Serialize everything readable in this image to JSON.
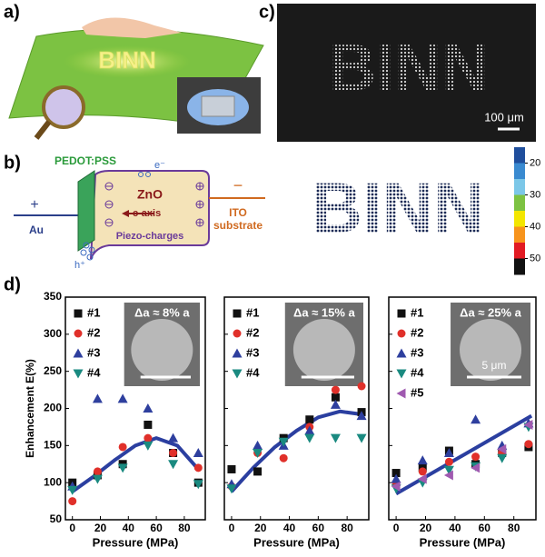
{
  "panel_labels": {
    "a": "a)",
    "b": "b)",
    "c": "c)",
    "d": "d)"
  },
  "panel_a": {
    "sheet_text": "BINN"
  },
  "panel_b": {
    "pedot": "PEDOT:PSS",
    "electron": "e⁻",
    "zno": "ZnO",
    "c_axis": "c-axis",
    "piezo": "Piezo-charges",
    "ito_1": "ITO",
    "ito_2": "substrate",
    "au": "Au",
    "plus": "+",
    "minus": "−",
    "hole": "h⁺"
  },
  "panel_c": {
    "top_image_text": "BINN",
    "bottom_image_text": "BINN",
    "scale_bar": "100 μm",
    "colorbar": {
      "lim": [
        15,
        55
      ],
      "ticks": [
        20,
        30,
        40,
        50
      ],
      "colors": [
        "#1f4e9c",
        "#3a8ad0",
        "#7cc7e8",
        "#7dc242",
        "#f3e600",
        "#f7941d",
        "#e21b23",
        "#111111"
      ]
    }
  },
  "chart_data": [
    {
      "type": "scatter",
      "inset_label": "Δa ≈ 8% a",
      "ylabel": "Enhancement E(%)",
      "xlabel": "Pressure (MPa)",
      "xlim": [
        -5,
        95
      ],
      "xticks": [
        0,
        20,
        40,
        60,
        80
      ],
      "ylim": [
        50,
        350
      ],
      "yticks": [
        50,
        100,
        150,
        200,
        250,
        300,
        350
      ],
      "ytick_labels": true,
      "x": [
        0,
        18,
        36,
        54,
        72,
        90
      ],
      "series": [
        {
          "name": "#1",
          "color": "#111111",
          "marker": "square",
          "values": [
            100,
            110,
            125,
            178,
            140,
            100
          ]
        },
        {
          "name": "#2",
          "color": "#e0302a",
          "marker": "circle",
          "values": [
            75,
            115,
            148,
            160,
            140,
            120
          ]
        },
        {
          "name": "#3",
          "color": "#2e3f9e",
          "marker": "triangle-up",
          "values": [
            95,
            213,
            213,
            200,
            160,
            140
          ]
        },
        {
          "name": "#4",
          "color": "#1a8a80",
          "marker": "triangle-down",
          "values": [
            90,
            105,
            120,
            150,
            125,
            98
          ]
        }
      ],
      "fit": {
        "color": "#2b3fa0",
        "x": [
          0,
          15,
          30,
          45,
          60,
          75,
          90
        ],
        "values": [
          88,
          108,
          130,
          150,
          160,
          150,
          118
        ]
      }
    },
    {
      "type": "scatter",
      "inset_label": "Δa ≈ 15% a",
      "xlabel": "Pressure (MPa)",
      "xlim": [
        -5,
        95
      ],
      "xticks": [
        0,
        20,
        40,
        60,
        80
      ],
      "ylim": [
        50,
        350
      ],
      "yticks": [
        50,
        100,
        150,
        200,
        250,
        300,
        350
      ],
      "ytick_labels": false,
      "x": [
        0,
        18,
        36,
        54,
        72,
        90
      ],
      "series": [
        {
          "name": "#1",
          "color": "#111111",
          "marker": "square",
          "values": [
            118,
            115,
            160,
            185,
            215,
            195
          ]
        },
        {
          "name": "#2",
          "color": "#e0302a",
          "marker": "circle",
          "values": [
            95,
            140,
            133,
            175,
            225,
            230
          ]
        },
        {
          "name": "#3",
          "color": "#2e3f9e",
          "marker": "triangle-up",
          "values": [
            98,
            150,
            150,
            170,
            205,
            190
          ]
        },
        {
          "name": "#4",
          "color": "#1a8a80",
          "marker": "triangle-down",
          "values": [
            92,
            140,
            155,
            160,
            160,
            160
          ]
        }
      ],
      "fit": {
        "color": "#2b3fa0",
        "x": [
          0,
          15,
          30,
          45,
          60,
          75,
          90
        ],
        "values": [
          88,
          120,
          148,
          170,
          188,
          196,
          192
        ]
      }
    },
    {
      "type": "scatter",
      "inset_label": "Δa ≈ 25% a",
      "scale_bar": "5 μm",
      "xlabel": "Pressure (MPa)",
      "xlim": [
        -5,
        95
      ],
      "xticks": [
        0,
        20,
        40,
        60,
        80
      ],
      "ylim": [
        50,
        350
      ],
      "yticks": [
        50,
        100,
        150,
        200,
        250,
        300,
        350
      ],
      "ytick_labels": false,
      "x": [
        0,
        18,
        36,
        54,
        72,
        90
      ],
      "series": [
        {
          "name": "#1",
          "color": "#111111",
          "marker": "square",
          "values": [
            113,
            120,
            143,
            125,
            140,
            148
          ]
        },
        {
          "name": "#2",
          "color": "#e0302a",
          "marker": "circle",
          "values": [
            97,
            115,
            128,
            135,
            140,
            152
          ]
        },
        {
          "name": "#3",
          "color": "#2e3f9e",
          "marker": "triangle-up",
          "values": [
            105,
            130,
            140,
            185,
            150,
            180
          ]
        },
        {
          "name": "#4",
          "color": "#1a8a80",
          "marker": "triangle-down",
          "values": [
            92,
            100,
            117,
            122,
            133,
            175
          ]
        },
        {
          "name": "#5",
          "color": "#a05ab0",
          "marker": "triangle-left",
          "values": [
            95,
            105,
            110,
            120,
            145,
            178
          ]
        }
      ],
      "fit": {
        "color": "#2b3fa0",
        "x": [
          0,
          92
        ],
        "values": [
          85,
          190
        ]
      }
    }
  ]
}
